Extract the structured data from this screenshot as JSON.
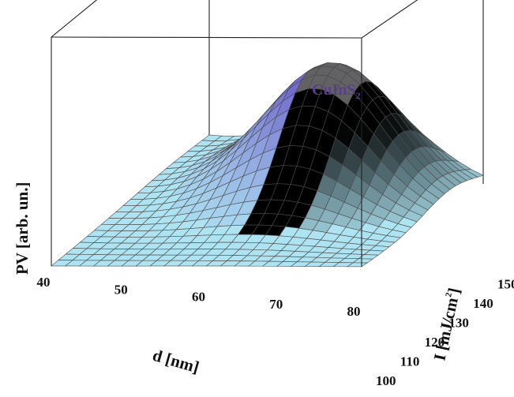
{
  "chart_data": {
    "type": "surface3d",
    "title": "CuInS",
    "title_subscript": "2",
    "title_color": "#5a3e8c",
    "xlabel": "d [nm]",
    "ylabel_main": "I [mJ/cm",
    "ylabel_sup": "2",
    "ylabel_close": "]",
    "zlabel": "PV [arb. un.]",
    "x_ticks": [
      "40",
      "50",
      "60",
      "70",
      "80"
    ],
    "y_ticks": [
      "100",
      "110",
      "120",
      "130",
      "140",
      "150"
    ],
    "xlim": [
      40,
      80
    ],
    "ylim": [
      100,
      150
    ],
    "zlim": [
      0,
      1
    ],
    "peak": {
      "d": 63,
      "I": 137,
      "pv": 0.55
    },
    "sigma_d": 8.5,
    "sigma_I": 11,
    "colors": {
      "surface_base": "#aee3f2",
      "peak_blue": "#6f63cc",
      "peak_pink": "#e8b6dc",
      "peak_white": "#f6f4fb",
      "mesh": "#4a4a4a"
    }
  }
}
